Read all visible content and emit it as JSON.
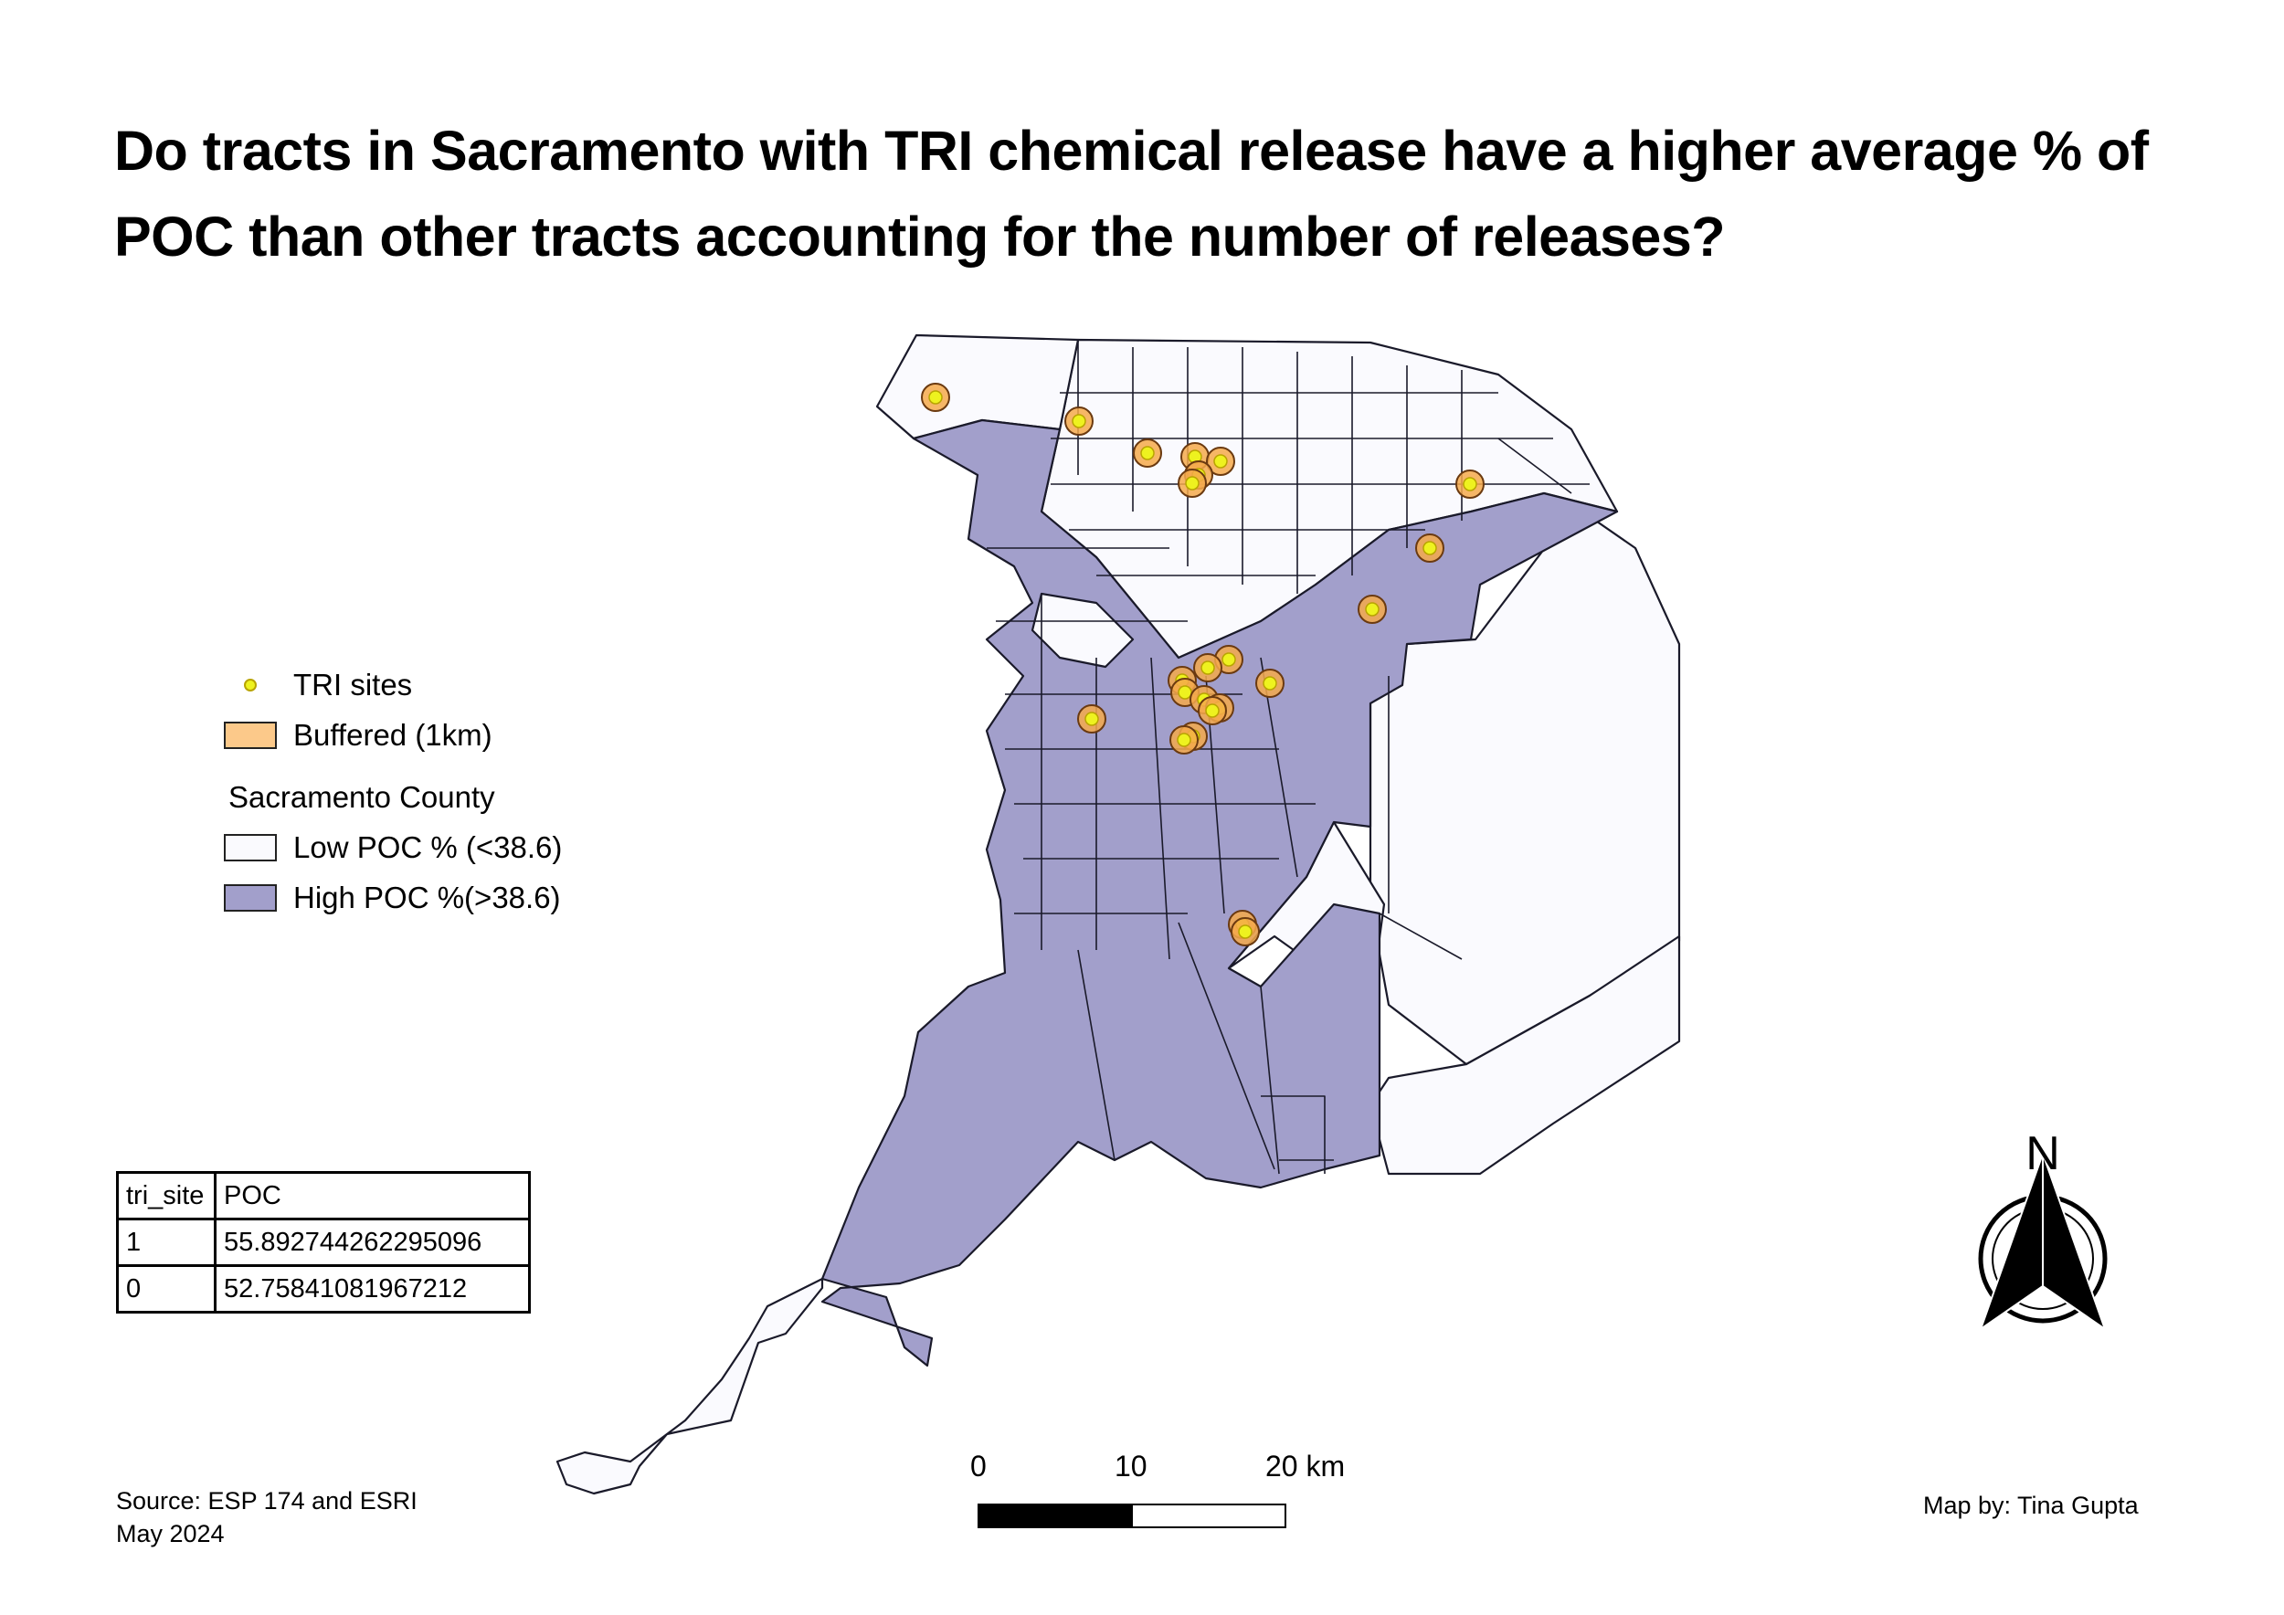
{
  "title": "Do tracts in Sacramento with TRI chemical release have a higher average % of POC than other tracts accounting for the number of releases?",
  "legend": {
    "tri_sites": "TRI sites",
    "buffered": "Buffered (1km)",
    "group": "Sacramento County",
    "low": "Low POC % (<38.6)",
    "high": "High POC %(>38.6)"
  },
  "colors": {
    "high_poc": "#a29fcb",
    "low_poc": "#fafafe",
    "buffer_fill": "#f5a94b",
    "buffer_ring": "#e07e1c",
    "site": "#eef21f",
    "legend_buffer": "#fcc98a"
  },
  "table": {
    "headers": [
      "tri_site",
      "POC"
    ],
    "rows": [
      [
        "1",
        "55.892744262295096"
      ],
      [
        "0",
        "52.75841081967212"
      ]
    ]
  },
  "scale_bar": {
    "labels": [
      "0",
      "10",
      "20 km"
    ]
  },
  "north_arrow": {
    "label": "N"
  },
  "source": {
    "line1": "Source: ESP 174 and ESRI",
    "line2": "May 2024"
  },
  "credit": "Map by: Tina Gupta"
}
